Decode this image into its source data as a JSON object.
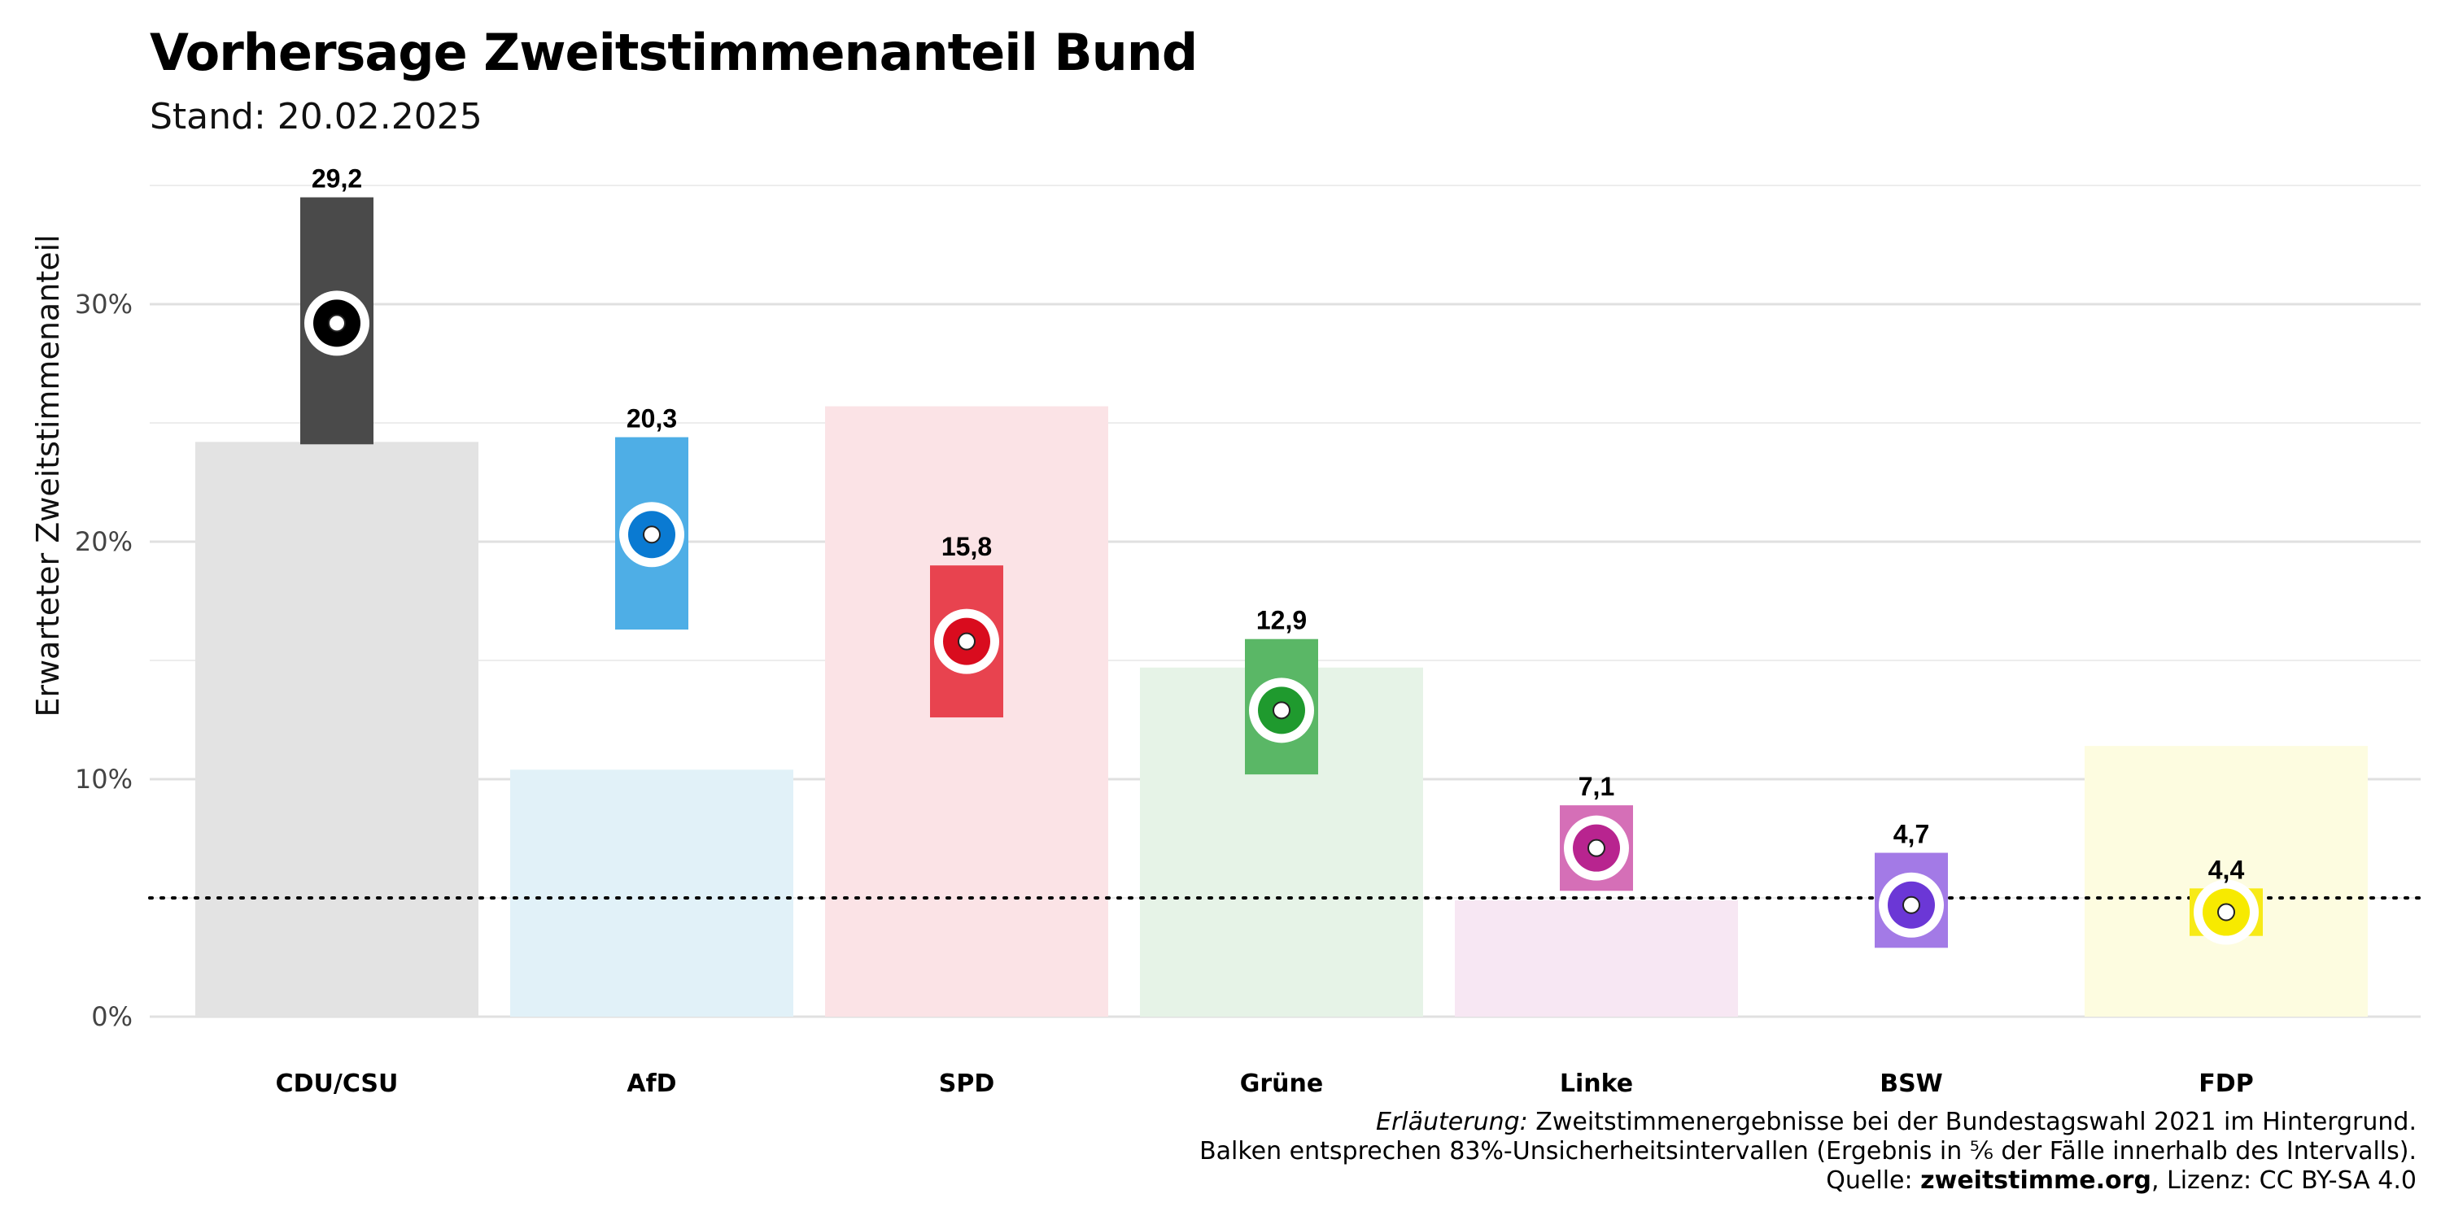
{
  "title": "Vorhersage Zweitstimmenanteil Bund",
  "subtitle": "Stand: 20.02.2025",
  "caption": {
    "line1_italic": "Erläuterung:",
    "line1_rest": " Zweitstimmenergebnisse bei der Bundestagswahl 2021 im Hintergrund.",
    "line2": "Balken entsprechen 83%-Unsicherheitsintervallen (Ergebnis in ⅚ der Fälle innerhalb des Intervalls).",
    "line3_prefix": "Quelle: ",
    "line3_source": "zweitstimme.org",
    "line3_suffix": ", Lizenz: CC BY-SA 4.0"
  },
  "chart_data": {
    "type": "bar",
    "ylabel": "Erwarteter Zweitstimmenanteil",
    "ylim": [
      0,
      35
    ],
    "yticks": [
      0,
      10,
      20,
      30
    ],
    "ytick_labels": [
      "0%",
      "10%",
      "20%",
      "30%"
    ],
    "threshold": 5,
    "grid": true,
    "categories": [
      "CDU/CSU",
      "AfD",
      "SPD",
      "Grüne",
      "Linke",
      "BSW",
      "FDP"
    ],
    "series": [
      {
        "role": "result_2021",
        "values": [
          24.2,
          10.4,
          25.7,
          14.7,
          4.9,
          0,
          11.4
        ]
      },
      {
        "role": "forecast",
        "values": [
          29.2,
          20.3,
          15.8,
          12.9,
          7.1,
          4.7,
          4.4
        ],
        "labels": [
          "29,2",
          "20,3",
          "15,8",
          "12,9",
          "7,1",
          "4,7",
          "4,4"
        ]
      },
      {
        "role": "interval_low",
        "values": [
          24.1,
          16.3,
          12.6,
          10.2,
          5.3,
          2.9,
          3.4
        ]
      },
      {
        "role": "interval_high",
        "values": [
          34.5,
          24.4,
          19.0,
          15.9,
          8.9,
          6.9,
          5.4
        ]
      }
    ],
    "colors": {
      "main": [
        "#4a4a4a",
        "#4eaee6",
        "#e8434f",
        "#5ab766",
        "#d56fb7",
        "#a37ae6",
        "#f7ea17"
      ],
      "light": [
        "#e3e3e3",
        "#e1f1f8",
        "#fbe3e6",
        "#e6f3e7",
        "#f7e7f3",
        "#ffffff",
        "#fdfce0"
      ],
      "dot": [
        "#000000",
        "#0a7ad2",
        "#d90c1e",
        "#1f9a2e",
        "#b8248f",
        "#6b37d6",
        "#f7ea00"
      ]
    }
  }
}
